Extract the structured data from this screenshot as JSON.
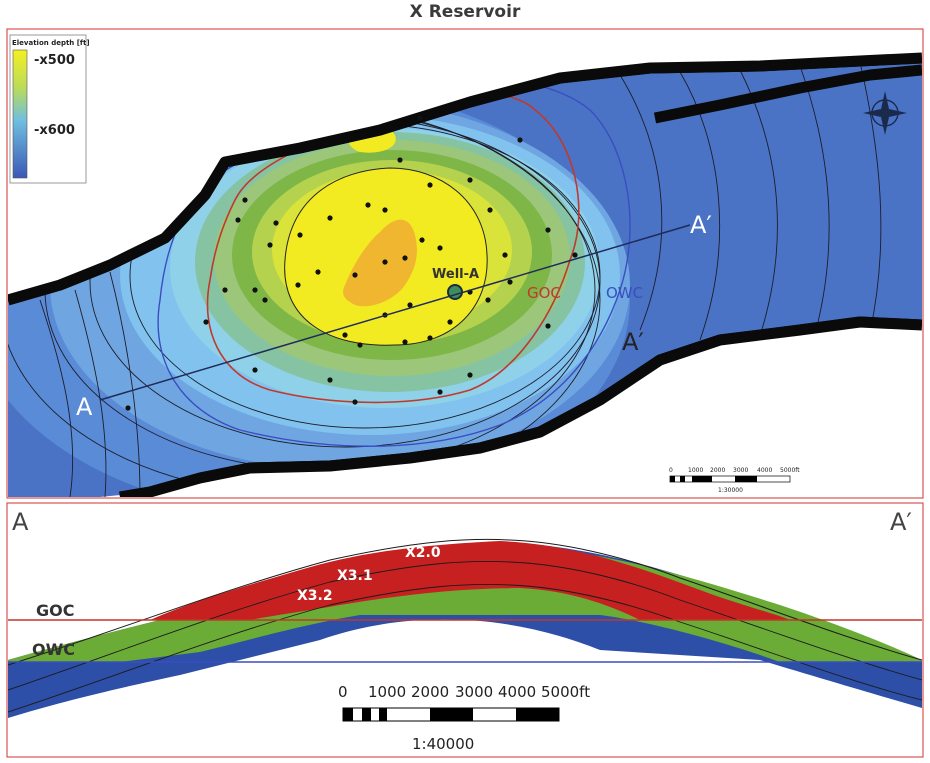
{
  "title": "X Reservoir",
  "legend": {
    "title": "Elevation depth [ft]",
    "top_label": "-x500",
    "mid_label": "-x600"
  },
  "map": {
    "well_label": "Well-A",
    "goc_label": "GOC",
    "owc_label": "OWC",
    "section_start_label": "A",
    "section_end_label": "A′",
    "scale_ticks": [
      "0",
      "1000",
      "2000",
      "3000",
      "4000",
      "5000ft"
    ],
    "scale_ratio": "1:30000",
    "north_symbol": "N"
  },
  "section": {
    "start_label": "A",
    "end_label": "A′",
    "horizons": [
      "X2.0",
      "X3.1",
      "X3.2"
    ],
    "goc_label": "GOC",
    "owc_label": "OWC",
    "scale_ticks": [
      "0",
      "1000",
      "2000",
      "3000",
      "4000",
      "5000ft"
    ],
    "scale_ratio": "1:40000"
  },
  "colors": {
    "frame": "#d9534f",
    "gas": "#c62020",
    "oil": "#6aac35",
    "water": "#2e4fa8",
    "goc_line": "#c0392b",
    "owc_line": "#3a4ec0"
  }
}
